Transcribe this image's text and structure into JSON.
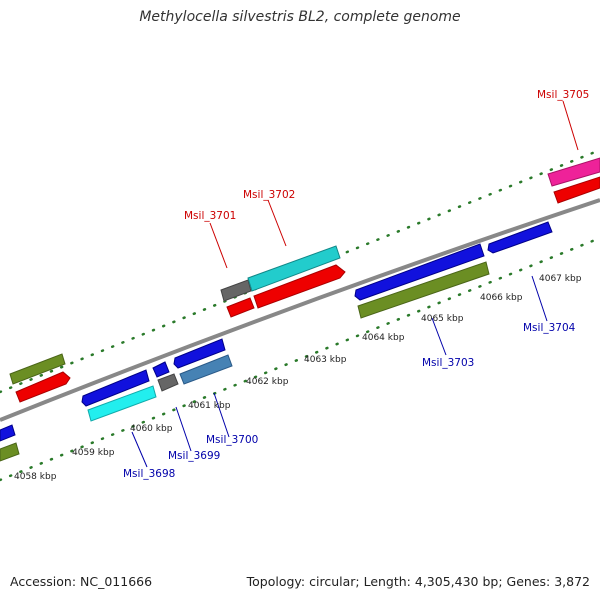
{
  "title": "Methylocella silvestris BL2, complete genome",
  "footer": {
    "accession": "Accession: NC_011666",
    "summary": "Topology: circular; Length: 4,305,430 bp; Genes: 3,872"
  },
  "colors": {
    "forward_label": "#cc0000",
    "reverse_label": "#0000aa",
    "backbone": "#888888",
    "ticks": "#2a7a2a"
  },
  "kbp_labels": [
    "4058 kbp",
    "4059 kbp",
    "4060 kbp",
    "4061 kbp",
    "4062 kbp",
    "4063 kbp",
    "4064 kbp",
    "4065 kbp",
    "4066 kbp",
    "4067 kbp"
  ],
  "gene_labels": [
    {
      "id": "Msil_3705",
      "strand": "forward"
    },
    {
      "id": "Msil_3702",
      "strand": "forward"
    },
    {
      "id": "Msil_3701",
      "strand": "forward"
    },
    {
      "id": "Msil_3703",
      "strand": "reverse"
    },
    {
      "id": "Msil_3704",
      "strand": "reverse"
    },
    {
      "id": "Msil_3700",
      "strand": "reverse"
    },
    {
      "id": "Msil_3699",
      "strand": "reverse"
    },
    {
      "id": "Msil_3698",
      "strand": "reverse"
    }
  ]
}
